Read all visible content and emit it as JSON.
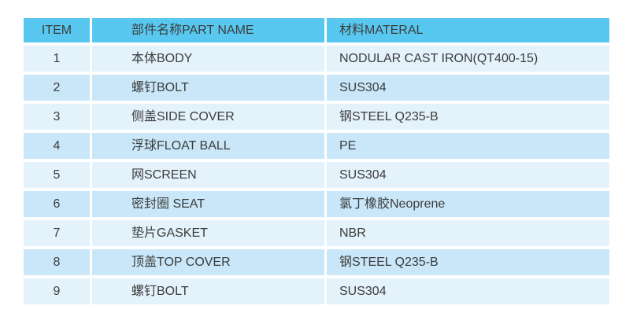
{
  "table": {
    "colors": {
      "header_bg": "#58C8F0",
      "row_odd_bg": "#E3F2FB",
      "row_even_bg": "#C9E7F8",
      "text": "#3C3C3C"
    },
    "columns": {
      "item": "ITEM",
      "part_name": "部件名称PART NAME",
      "material": "材料MATERAL"
    },
    "rows": [
      {
        "item": "1",
        "part_name": "本体BODY",
        "material": "NODULAR CAST IRON(QT400-15)"
      },
      {
        "item": "2",
        "part_name": "螺钉BOLT",
        "material": "SUS304"
      },
      {
        "item": "3",
        "part_name": "侧盖SIDE COVER",
        "material": "钢STEEL Q235-B"
      },
      {
        "item": "4",
        "part_name": "浮球FLOAT BALL",
        "material": "PE"
      },
      {
        "item": "5",
        "part_name": "网SCREEN",
        "material": "SUS304"
      },
      {
        "item": "6",
        "part_name": "密封圈 SEAT",
        "material": "氯丁橡胶Neoprene"
      },
      {
        "item": "7",
        "part_name": "垫片GASKET",
        "material": "NBR"
      },
      {
        "item": "8",
        "part_name": "顶盖TOP COVER",
        "material": "钢STEEL Q235-B"
      },
      {
        "item": "9",
        "part_name": "螺钉BOLT",
        "material": "SUS304"
      }
    ]
  }
}
